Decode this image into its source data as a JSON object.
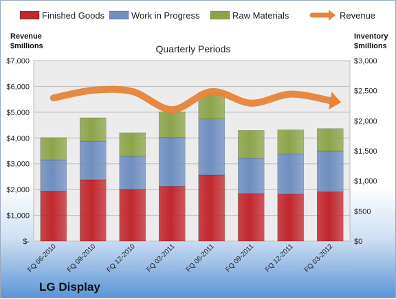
{
  "chart_data": {
    "type": "bar",
    "stacked": true,
    "subtitle": "Quarterly Periods",
    "brand": "LG Display",
    "categories": [
      "FQ 06-2010",
      "FQ 09-2010",
      "FQ 12-2010",
      "FQ 03-2011",
      "FQ 06-2011",
      "FQ 09-2011",
      "FQ 12-2011",
      "FQ 03-2012"
    ],
    "series": [
      {
        "name": "Finished Goods",
        "axis": "right",
        "color": "#c0282d",
        "values": [
          830,
          1020,
          860,
          910,
          1100,
          790,
          780,
          820
        ]
      },
      {
        "name": "Work in Progress",
        "axis": "right",
        "color": "#6f8fc0",
        "values": [
          520,
          640,
          550,
          810,
          930,
          590,
          670,
          680
        ]
      },
      {
        "name": "Raw Materials",
        "axis": "right",
        "color": "#8da44a",
        "values": [
          370,
          390,
          390,
          430,
          440,
          460,
          400,
          370
        ]
      },
      {
        "name": "Revenue",
        "type": "line",
        "axis": "left",
        "color": "#e8843a",
        "values": [
          5550,
          5850,
          5800,
          5100,
          5800,
          5350,
          5700,
          5450
        ]
      }
    ],
    "left_axis": {
      "label_lines": [
        "Revenue",
        "$millions"
      ],
      "ylim": [
        0,
        7000
      ],
      "ticks": [
        "$-",
        "$1,000",
        "$2,000",
        "$3,000",
        "$4,000",
        "$5,000",
        "$6,000",
        "$7,000"
      ]
    },
    "right_axis": {
      "label_lines": [
        "Inventory",
        "$millions"
      ],
      "ylim": [
        0,
        3000
      ],
      "ticks": [
        "$0",
        "$500",
        "$1,000",
        "$1,500",
        "$2,000",
        "$2,500",
        "$3,000"
      ]
    },
    "grid": true,
    "legend_position": "top"
  }
}
